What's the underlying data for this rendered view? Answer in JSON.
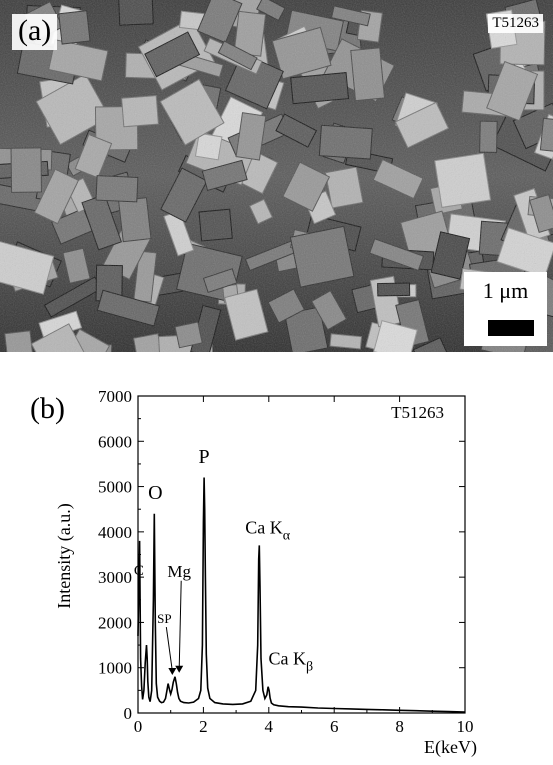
{
  "panel_a": {
    "label": "(a)",
    "sample_id": "T51263",
    "scale_bar_label": "1 μm"
  },
  "panel_b": {
    "label": "(b)",
    "sample_id": "T51263"
  },
  "chart_data": {
    "type": "line",
    "title": "",
    "xlabel": "E(keV)",
    "ylabel": "Intensity (a.u.)",
    "xlim": [
      0,
      10
    ],
    "ylim": [
      0,
      7000
    ],
    "xticks": [
      0,
      2,
      4,
      6,
      8,
      10
    ],
    "yticks": [
      0,
      1000,
      2000,
      3000,
      4000,
      5000,
      6000,
      7000
    ],
    "legend": "none",
    "grid": false,
    "series": [
      {
        "x": [
          0.0,
          0.05,
          0.08,
          0.11,
          0.14,
          0.18,
          0.22,
          0.26,
          0.28,
          0.3,
          0.33,
          0.37,
          0.42,
          0.47,
          0.5,
          0.53,
          0.56,
          0.6,
          0.66,
          0.72,
          0.78,
          0.84,
          0.88,
          0.92,
          0.97,
          1.0,
          1.04,
          1.08,
          1.13,
          1.17,
          1.21,
          1.25,
          1.3,
          1.4,
          1.55,
          1.7,
          1.85,
          1.92,
          1.97,
          2.0,
          2.02,
          2.04,
          2.06,
          2.09,
          2.13,
          2.2,
          2.35,
          2.6,
          2.9,
          3.2,
          3.45,
          3.6,
          3.66,
          3.69,
          3.71,
          3.73,
          3.76,
          3.82,
          3.88,
          3.94,
          3.98,
          4.01,
          4.04,
          4.08,
          4.15,
          4.3,
          4.6,
          5.0,
          5.5,
          6.0,
          6.5,
          7.0,
          7.5,
          8.0,
          8.5,
          9.0,
          9.5,
          10.0
        ],
        "y": [
          1700,
          3800,
          1200,
          600,
          300,
          500,
          1100,
          1500,
          1200,
          700,
          350,
          250,
          500,
          2500,
          4400,
          2000,
          650,
          350,
          260,
          230,
          240,
          320,
          480,
          650,
          500,
          420,
          520,
          680,
          800,
          650,
          450,
          320,
          260,
          230,
          220,
          240,
          320,
          500,
          1500,
          4200,
          5200,
          4500,
          3000,
          1300,
          550,
          320,
          230,
          200,
          190,
          200,
          260,
          500,
          1500,
          3400,
          3700,
          2800,
          1200,
          500,
          320,
          400,
          580,
          500,
          330,
          220,
          180,
          160,
          140,
          130,
          110,
          100,
          90,
          80,
          70,
          60,
          50,
          40,
          30,
          20
        ]
      }
    ],
    "annotations": [
      {
        "text": "C",
        "x": 0.27,
        "y": 1500
      },
      {
        "text": "O",
        "x": 0.53,
        "y": 4500
      },
      {
        "text": "P",
        "x": 2.02,
        "y": 5300
      },
      {
        "text": "Mg",
        "x": 1.26,
        "y": 800
      },
      {
        "text": "SP",
        "x": 1.05,
        "y": 750
      },
      {
        "text": "Ca K",
        "sub": "α",
        "x": 3.72,
        "y": 3700
      },
      {
        "text": "Ca K",
        "sub": "β",
        "x": 4.0,
        "y": 580
      }
    ]
  }
}
